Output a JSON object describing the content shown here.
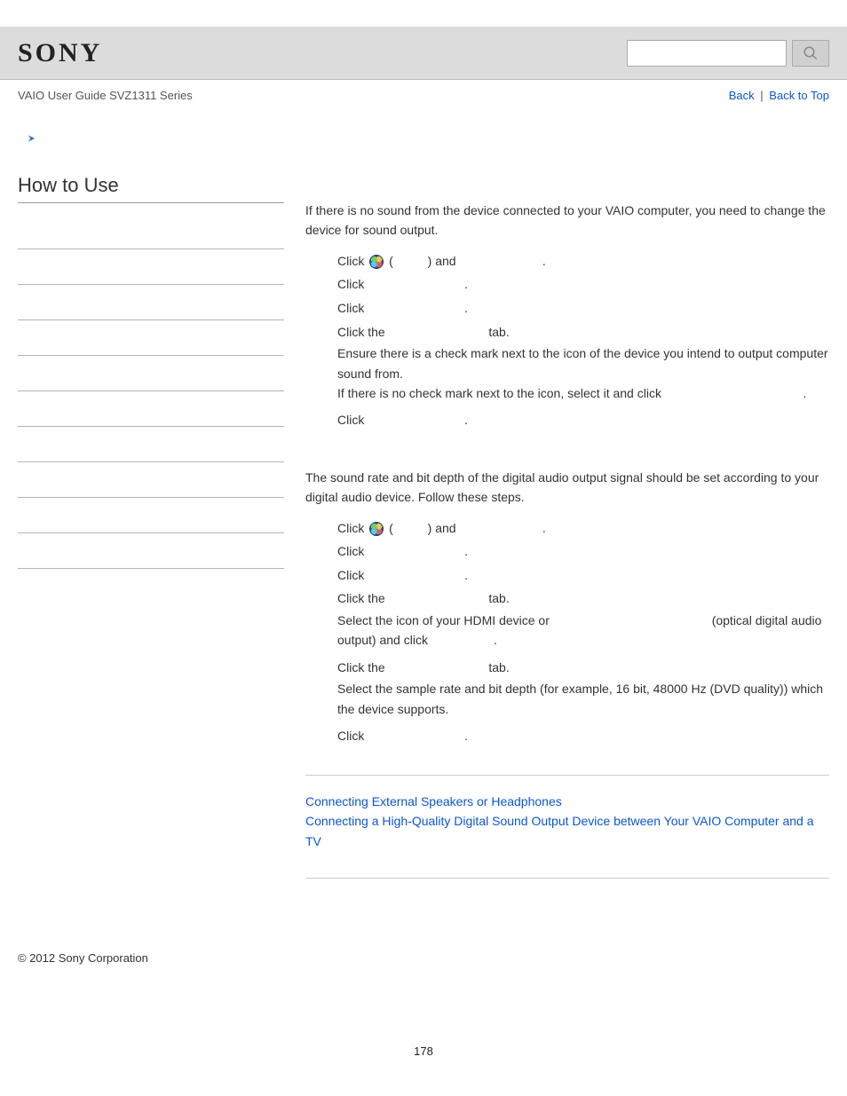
{
  "logo": "SONY",
  "guideTitle": "VAIO User Guide SVZ1311 Series",
  "nav": {
    "back": "Back",
    "top": "Back to Top",
    "sep": "|"
  },
  "sidebar": {
    "heading": "How to Use",
    "rowCount": 10
  },
  "main": {
    "intro1": "If there is no sound from the device connected to your VAIO computer, you need to change the device for sound output.",
    "sec1": [
      {
        "pre": "Click ",
        "orb": true,
        "mid": " (",
        "post": ") and ",
        "tail": "."
      },
      {
        "pre": "Click ",
        "tail": "."
      },
      {
        "pre": "Click ",
        "tail": "."
      },
      {
        "pre": "Click the ",
        "tail": " tab."
      },
      {
        "multi": true,
        "l1": "Ensure there is a check mark next to the icon of the device you intend to output computer sound from.",
        "l2pre": "If there is no check mark next to the icon, select it and click ",
        "l2tail": "."
      },
      {
        "pre": "Click ",
        "tail": "."
      }
    ],
    "intro2": "The sound rate and bit depth of the digital audio output signal should be set according to your digital audio device. Follow these steps.",
    "sec2": [
      {
        "pre": "Click ",
        "orb": true,
        "mid": " (",
        "post": ") and ",
        "tail": "."
      },
      {
        "pre": "Click ",
        "tail": "."
      },
      {
        "pre": "Click ",
        "tail": "."
      },
      {
        "pre": "Click the ",
        "tail": " tab."
      },
      {
        "multi": true,
        "l1pre": "Select the icon of your HDMI device or ",
        "l1post": " (optical digital audio output) and click ",
        "l1tail": "."
      },
      {
        "pre": "Click the ",
        "tail": " tab."
      },
      {
        "text": "Select the sample rate and bit depth (for example, 16 bit, 48000 Hz (DVD quality)) which the device supports."
      },
      {
        "pre": "Click ",
        "tail": "."
      }
    ],
    "related": [
      "Connecting External Speakers or Headphones",
      "Connecting a High-Quality Digital Sound Output Device between Your VAIO Computer and a TV"
    ]
  },
  "copyright": "© 2012 Sony Corporation",
  "pageNumber": "178",
  "gap1": "          ",
  "gap2": "                              ",
  "gap3": "             ",
  "gap4": "                                 ",
  "gap5": "                                                                  "
}
